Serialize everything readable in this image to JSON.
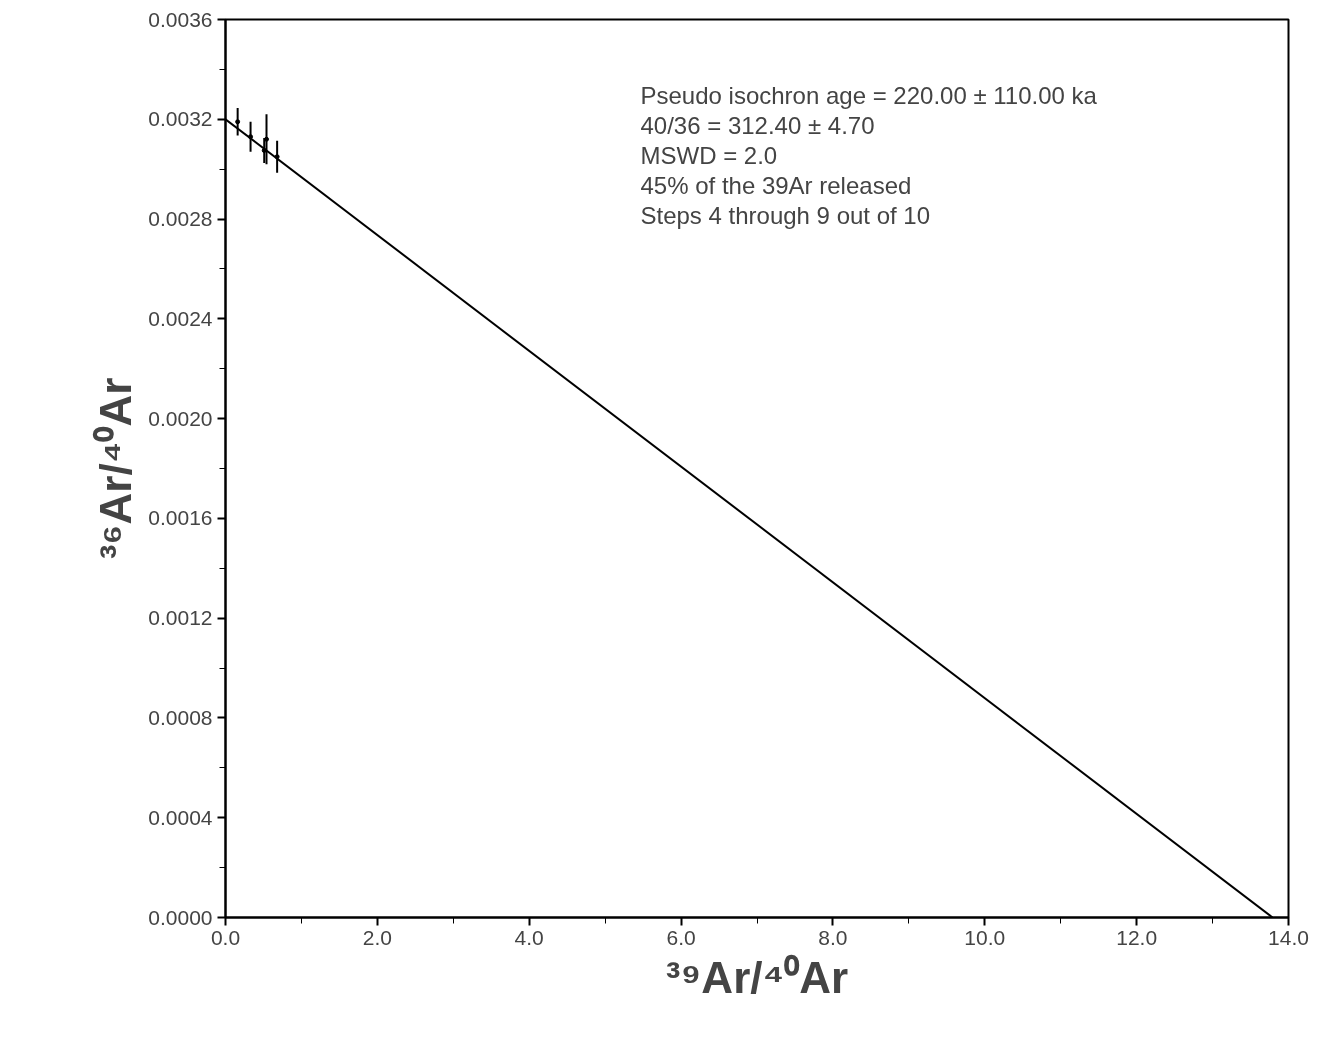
{
  "chart_data": {
    "type": "scatter",
    "xlabel": "³⁹Ar/⁴⁰Ar",
    "ylabel": "³⁶Ar/⁴⁰Ar",
    "xlim": [
      0,
      14
    ],
    "ylim": [
      0,
      0.0036
    ],
    "xticks": [
      {
        "value": 0,
        "label": "0.0"
      },
      {
        "value": 1,
        "label": null
      },
      {
        "value": 2,
        "label": "2.0"
      },
      {
        "value": 3,
        "label": null
      },
      {
        "value": 4,
        "label": "4.0"
      },
      {
        "value": 5,
        "label": null
      },
      {
        "value": 6,
        "label": "6.0"
      },
      {
        "value": 7,
        "label": null
      },
      {
        "value": 8,
        "label": "8.0"
      },
      {
        "value": 9,
        "label": null
      },
      {
        "value": 10,
        "label": "10.0"
      },
      {
        "value": 11,
        "label": null
      },
      {
        "value": 12,
        "label": "12.0"
      },
      {
        "value": 13,
        "label": null
      },
      {
        "value": 14,
        "label": "14.0"
      }
    ],
    "yticks": [
      {
        "value": 0,
        "label": "0.0000"
      },
      {
        "value": 0.0002,
        "label": null
      },
      {
        "value": 0.0004,
        "label": "0.0004"
      },
      {
        "value": 0.0006,
        "label": null
      },
      {
        "value": 0.0008,
        "label": "0.0008"
      },
      {
        "value": 0.001,
        "label": null
      },
      {
        "value": 0.0012,
        "label": "0.0012"
      },
      {
        "value": 0.0014,
        "label": null
      },
      {
        "value": 0.0016,
        "label": "0.0016"
      },
      {
        "value": 0.0018,
        "label": null
      },
      {
        "value": 0.002,
        "label": "0.0020"
      },
      {
        "value": 0.0022,
        "label": null
      },
      {
        "value": 0.0024,
        "label": "0.0024"
      },
      {
        "value": 0.0026,
        "label": null
      },
      {
        "value": 0.0028,
        "label": "0.0028"
      },
      {
        "value": 0.003,
        "label": null
      },
      {
        "value": 0.0032,
        "label": "0.0032"
      },
      {
        "value": 0.0034,
        "label": null
      },
      {
        "value": 0.0036,
        "label": "0.0036"
      }
    ],
    "grid": false,
    "series": [
      {
        "color": "#000000",
        "marker": "circle",
        "x": [
          0.16,
          0.33,
          0.51,
          0.54,
          0.68
        ],
        "values": [
          0.00319,
          0.00313,
          0.003075,
          0.00312,
          0.00305
        ],
        "errors": [
          5.5e-05,
          6e-05,
          5e-05,
          0.0001,
          6.4e-05
        ]
      },
      {
        "type": "line",
        "color": "#000000",
        "x": [
          0,
          13.79
        ],
        "values": [
          0.0032,
          0
        ]
      }
    ],
    "annotations": [
      "Pseudo isochron age = 220.00 ± 110.00 ka",
      "40/36 = 312.40 ± 4.70",
      "MSWD = 2.0",
      "45% of the 39Ar released",
      "Steps 4 through 9 out of 10"
    ]
  }
}
